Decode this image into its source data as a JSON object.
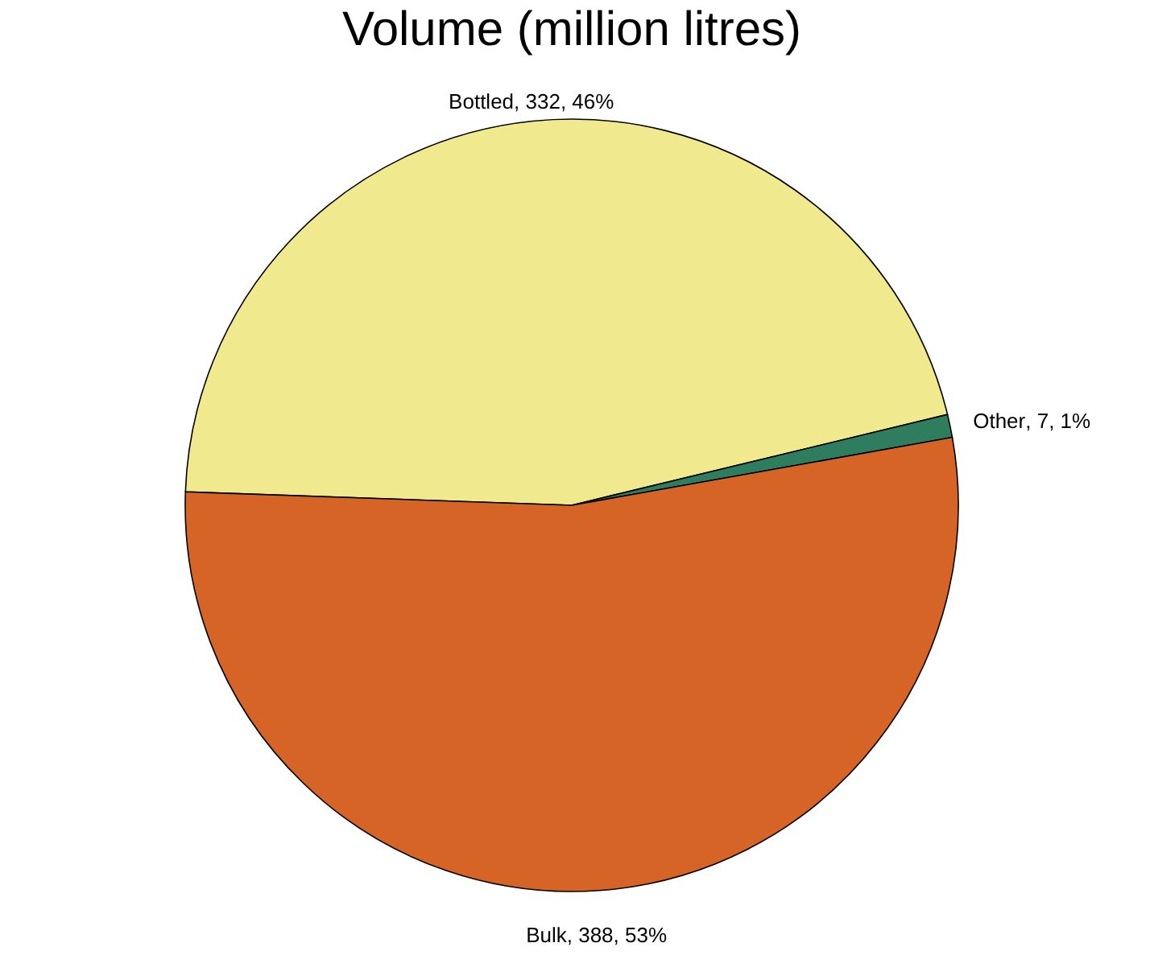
{
  "chart_data": {
    "type": "pie",
    "title": "Volume (million litres)",
    "categories": [
      "Bottled",
      "Other",
      "Bulk"
    ],
    "values": [
      332,
      7,
      388
    ],
    "colors": [
      "#f0e98e",
      "#2e7d5e",
      "#d66427"
    ],
    "value_labels": [
      ", 332, 46%",
      ", 7, 1%",
      ", 388, 53%"
    ],
    "legend": false
  }
}
